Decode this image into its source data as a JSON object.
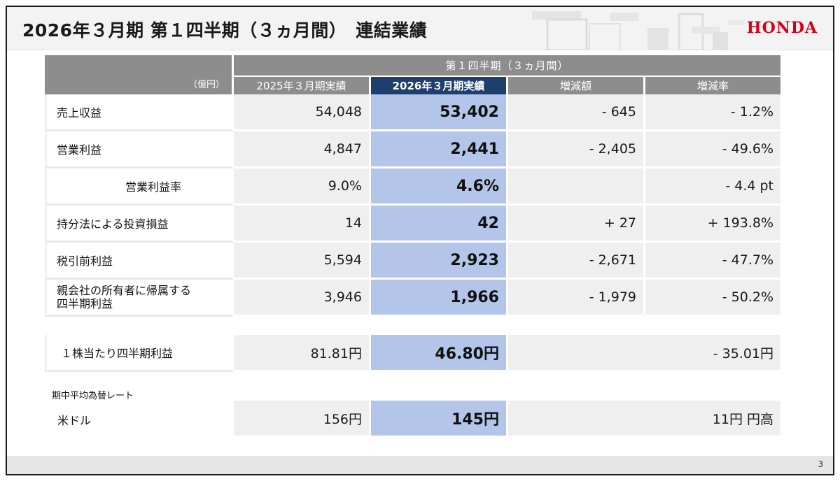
{
  "header": {
    "title": "2026年３月期 第１四半期（３ヵ月間）　連結業績",
    "logo_text": "HONDA"
  },
  "table": {
    "unit": "（億円）",
    "group_header": "第１四半期（３ヵ月間）",
    "columns": [
      "2025年３月期実績",
      "2026年３月期実績",
      "増減額",
      "増減率"
    ],
    "rows": [
      {
        "label": "売上収益",
        "prev": "54,048",
        "cur": "53,402",
        "diff": "- 645",
        "rate": "- 1.2%"
      },
      {
        "label": "営業利益",
        "prev": "4,847",
        "cur": "2,441",
        "diff": "- 2,405",
        "rate": "- 49.6%"
      },
      {
        "label": "営業利益率",
        "prev": "9.0%",
        "cur": "4.6%",
        "diff": "",
        "rate": "- 4.4 pt"
      },
      {
        "label": "持分法による投資損益",
        "prev": "14",
        "cur": "42",
        "diff": "+ 27",
        "rate": "+ 193.8%"
      },
      {
        "label": "税引前利益",
        "prev": "5,594",
        "cur": "2,923",
        "diff": "- 2,671",
        "rate": "- 47.7%"
      },
      {
        "label": "親会社の所有者に帰属する四半期利益",
        "label_line1": "親会社の所有者に帰属する",
        "label_line2": "四半期利益",
        "prev": "3,946",
        "cur": "1,966",
        "diff": "- 1,979",
        "rate": "- 50.2%"
      }
    ],
    "eps": {
      "label": "１株当たり四半期利益",
      "prev": "81.81円",
      "cur": "46.80円",
      "change": "- 35.01円"
    },
    "fx_section_label": "期中平均為替レート",
    "fx": {
      "label": "米ドル",
      "prev": "156円",
      "cur": "145円",
      "change": "11円 円高"
    }
  },
  "footer": {
    "page_number": "3"
  },
  "colors": {
    "brand_red": "#d6001c",
    "header_gray": "#8d8d8d",
    "highlight_navy": "#1d3f6e",
    "highlight_cell": "#b3c6ea"
  }
}
